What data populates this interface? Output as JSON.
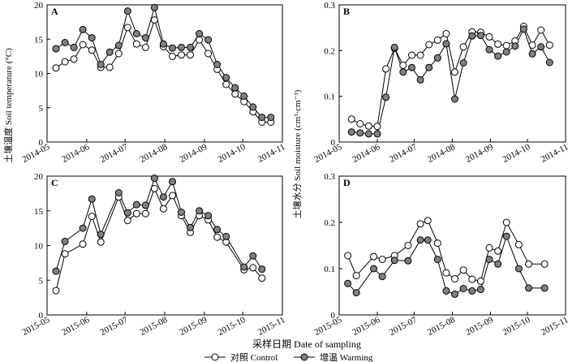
{
  "figure": {
    "xlabel": "采样日期 Date of sampling",
    "ylabel_left": "土壤温度 Soil temperature (°C)",
    "ylabel_right": "土壤水分 Soil moisture (cm³·cm⁻³)",
    "legend": {
      "control": "对照 Control",
      "warming": "增温 Warming"
    },
    "colors": {
      "control_fill": "#ffffff",
      "warming_fill": "#808080",
      "line": "#000000"
    }
  },
  "chart_data": [
    {
      "panel": "A",
      "type": "line",
      "title": "",
      "xlim": [
        "2014-05-01",
        "2014-11-01"
      ],
      "x_ticks": [
        "2014-05",
        "2014-06",
        "2014-07",
        "2014-08",
        "2014-09",
        "2014-10",
        "2014-11"
      ],
      "ylim": [
        0,
        20
      ],
      "y_ticks": [
        "0",
        "5",
        "10",
        "15",
        "20"
      ],
      "x": [
        "2014-05-08",
        "2014-05-15",
        "2014-05-22",
        "2014-05-29",
        "2014-06-05",
        "2014-06-12",
        "2014-06-19",
        "2014-06-26",
        "2014-07-03",
        "2014-07-10",
        "2014-07-17",
        "2014-07-24",
        "2014-07-31",
        "2014-08-07",
        "2014-08-14",
        "2014-08-21",
        "2014-08-28",
        "2014-09-04",
        "2014-09-11",
        "2014-09-18",
        "2014-09-25",
        "2014-10-02",
        "2014-10-09",
        "2014-10-16",
        "2014-10-23"
      ],
      "series": [
        {
          "name": "对照 Control",
          "values": [
            10.8,
            11.7,
            12.1,
            14.2,
            13.4,
            10.9,
            10.9,
            12.9,
            16.7,
            14.3,
            13.8,
            17.8,
            13.9,
            12.5,
            12.7,
            12.7,
            14.9,
            12.9,
            10.6,
            8.4,
            7.0,
            5.9,
            4.4,
            2.9,
            2.9
          ]
        },
        {
          "name": "增温 Warming",
          "values": [
            13.6,
            14.5,
            13.8,
            16.4,
            15.2,
            11.3,
            13.1,
            14.1,
            19.1,
            15.8,
            15.2,
            19.6,
            14.3,
            13.7,
            13.8,
            13.8,
            15.8,
            14.9,
            11.3,
            9.4,
            7.9,
            6.7,
            5.1,
            3.6,
            3.6
          ]
        }
      ]
    },
    {
      "panel": "B",
      "type": "line",
      "title": "",
      "xlim": [
        "2014-05-01",
        "2014-11-01"
      ],
      "x_ticks": [
        "2014-05",
        "2014-06",
        "2014-07",
        "2014-08",
        "2014-09",
        "2014-10",
        "2014-11"
      ],
      "ylim": [
        0,
        0.3
      ],
      "y_ticks": [
        "0",
        "0.1",
        "0.2",
        "0.3"
      ],
      "x": [
        "2014-05-11",
        "2014-05-18",
        "2014-05-25",
        "2014-06-01",
        "2014-06-08",
        "2014-06-15",
        "2014-06-22",
        "2014-06-29",
        "2014-07-06",
        "2014-07-13",
        "2014-07-20",
        "2014-07-27",
        "2014-08-03",
        "2014-08-10",
        "2014-08-17",
        "2014-08-24",
        "2014-08-31",
        "2014-09-07",
        "2014-09-14",
        "2014-09-21",
        "2014-09-28",
        "2014-10-05",
        "2014-10-12",
        "2014-10-19"
      ],
      "series": [
        {
          "name": "对照 Control",
          "values": [
            0.05,
            0.04,
            0.035,
            0.034,
            0.16,
            0.205,
            0.168,
            0.19,
            0.19,
            0.213,
            0.223,
            0.237,
            0.153,
            0.208,
            0.241,
            0.24,
            0.23,
            0.214,
            0.211,
            0.221,
            0.253,
            0.212,
            0.245,
            0.212
          ]
        },
        {
          "name": "增温 Warming",
          "values": [
            0.022,
            0.02,
            0.018,
            0.018,
            0.098,
            0.207,
            0.153,
            0.163,
            0.136,
            0.163,
            0.184,
            0.215,
            0.094,
            0.173,
            0.232,
            0.233,
            0.202,
            0.188,
            0.197,
            0.21,
            0.247,
            0.193,
            0.208,
            0.174
          ]
        }
      ]
    },
    {
      "panel": "C",
      "type": "line",
      "title": "",
      "xlim": [
        "2015-05-01",
        "2015-11-01"
      ],
      "x_ticks": [
        "2015-05",
        "2015-06",
        "2015-07",
        "2015-08",
        "2015-09",
        "2015-10",
        "2015-11"
      ],
      "ylim": [
        0,
        20
      ],
      "y_ticks": [
        "0",
        "5",
        "10",
        "15",
        "20"
      ],
      "x": [
        "2015-05-08",
        "2015-05-15",
        "2015-05-29",
        "2015-06-05",
        "2015-06-12",
        "2015-06-26",
        "2015-07-03",
        "2015-07-10",
        "2015-07-17",
        "2015-07-24",
        "2015-07-31",
        "2015-08-07",
        "2015-08-14",
        "2015-08-21",
        "2015-08-28",
        "2015-09-04",
        "2015-09-11",
        "2015-09-18",
        "2015-10-02",
        "2015-10-09",
        "2015-10-16"
      ],
      "series": [
        {
          "name": "对照 Control",
          "values": [
            3.5,
            8.8,
            10.2,
            14.2,
            10.5,
            17.0,
            13.6,
            14.6,
            14.6,
            18.2,
            15.3,
            17.2,
            14.3,
            11.9,
            14.3,
            13.7,
            11.2,
            10.5,
            6.5,
            6.8,
            5.3
          ]
        },
        {
          "name": "增温 Warming",
          "values": [
            6.3,
            10.6,
            12.5,
            16.7,
            11.6,
            17.6,
            14.7,
            15.9,
            15.8,
            19.7,
            17.0,
            19.2,
            14.8,
            12.6,
            15.0,
            14.3,
            12.3,
            11.3,
            6.9,
            8.5,
            6.6
          ]
        }
      ]
    },
    {
      "panel": "D",
      "type": "line",
      "title": "",
      "xlim": [
        "2015-05-01",
        "2015-11-01"
      ],
      "x_ticks": [
        "2015-05",
        "2015-06",
        "2015-07",
        "2015-08",
        "2015-09",
        "2015-10",
        "2015-11"
      ],
      "ylim": [
        0,
        0.3
      ],
      "y_ticks": [
        "0",
        "0.1",
        "0.2",
        "0.3"
      ],
      "x": [
        "2015-05-08",
        "2015-05-15",
        "2015-05-29",
        "2015-06-05",
        "2015-06-15",
        "2015-06-26",
        "2015-07-06",
        "2015-07-12",
        "2015-07-20",
        "2015-07-27",
        "2015-08-03",
        "2015-08-10",
        "2015-08-17",
        "2015-08-24",
        "2015-08-31",
        "2015-09-07",
        "2015-09-14",
        "2015-09-24",
        "2015-10-02",
        "2015-10-15"
      ],
      "series": [
        {
          "name": "对照 Control",
          "values": [
            0.128,
            0.085,
            0.126,
            0.12,
            0.128,
            0.15,
            0.197,
            0.204,
            0.155,
            0.091,
            0.078,
            0.097,
            0.077,
            0.073,
            0.145,
            0.138,
            0.2,
            0.152,
            0.11,
            0.11
          ]
        },
        {
          "name": "增温 Warming",
          "values": [
            0.068,
            0.048,
            0.1,
            0.083,
            0.118,
            0.117,
            0.162,
            0.162,
            0.12,
            0.052,
            0.045,
            0.057,
            0.052,
            0.055,
            0.12,
            0.11,
            0.17,
            0.1,
            0.058,
            0.058
          ]
        }
      ]
    }
  ]
}
